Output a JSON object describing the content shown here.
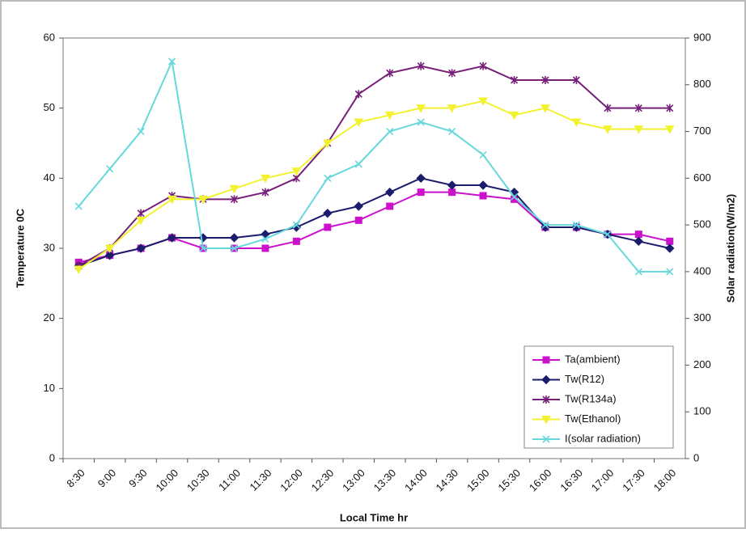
{
  "chart_data": {
    "type": "line",
    "x_label": "Local Time hr",
    "y_label": "Temperature 0C",
    "y2_label": "Solar radiation(W/m2)",
    "categories": [
      "8:30",
      "9:00",
      "9:30",
      "10:00",
      "10:30",
      "11:00",
      "11:30",
      "12:00",
      "12:30",
      "13:00",
      "13:30",
      "14:00",
      "14:30",
      "15:00",
      "15:30",
      "16:00",
      "16:30",
      "17:00",
      "17:30",
      "18:00"
    ],
    "ylim": [
      0,
      60
    ],
    "yticks": [
      0,
      10,
      20,
      30,
      40,
      50,
      60
    ],
    "y2lim": [
      0,
      900
    ],
    "y2ticks": [
      0,
      100,
      200,
      300,
      400,
      500,
      600,
      700,
      800,
      900
    ],
    "legend": "lower right",
    "series": [
      {
        "name": "Ta(ambient)",
        "color": "#cc11cc",
        "marker": "square",
        "values": [
          28,
          29,
          30,
          31.5,
          30,
          30,
          30,
          31,
          33,
          34,
          36,
          38,
          38,
          37.5,
          37,
          33,
          33,
          32,
          32,
          31
        ]
      },
      {
        "name": "Tw(R12)",
        "color": "#1c1c6c",
        "marker": "diamond",
        "values": [
          27.5,
          29,
          30,
          31.5,
          31.5,
          31.5,
          32,
          33,
          35,
          36,
          38,
          40,
          39,
          39,
          38,
          33,
          33,
          32,
          31,
          30
        ]
      },
      {
        "name": "Tw(R134a)",
        "color": "#76207a",
        "marker": "star",
        "values": [
          27.5,
          30,
          35,
          37.5,
          37,
          37,
          38,
          40,
          45,
          52,
          55,
          56,
          55,
          56,
          54,
          54,
          54,
          50,
          50,
          50
        ]
      },
      {
        "name": "Tw(Ethanol)",
        "color": "#f2f230",
        "marker": "triangle",
        "values": [
          27,
          30,
          34,
          37,
          37,
          38.5,
          40,
          41,
          45,
          48,
          49,
          50,
          50,
          51,
          49,
          50,
          48,
          47,
          47,
          47
        ]
      },
      {
        "name": "I(solar radiation)",
        "color": "#66d8dc",
        "marker": "cross",
        "axis": "y2",
        "values": [
          540,
          620,
          700,
          850,
          450,
          450,
          470,
          500,
          600,
          630,
          700,
          720,
          700,
          650,
          560,
          500,
          500,
          480,
          400,
          400
        ]
      }
    ]
  }
}
